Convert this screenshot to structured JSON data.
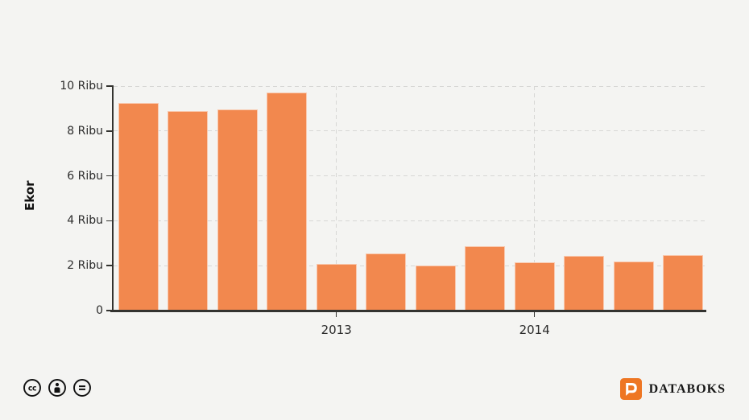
{
  "page": {
    "background_color": "#f4f4f2"
  },
  "chart_data": {
    "type": "bar",
    "title": "",
    "xlabel": "",
    "ylabel": "Ekor",
    "unit": "Ribu (thousands)",
    "bar_color": "#F2884E",
    "bar_border_color": "#F8BC95",
    "grid": "dashed horizontal lines at every 2 Ribu; dashed vertical lines at year ticks; grid on",
    "legend": "none",
    "ylim": [
      0,
      10
    ],
    "y_ticks": [
      {
        "value": 0,
        "label": "0"
      },
      {
        "value": 2,
        "label": "2 Ribu"
      },
      {
        "value": 4,
        "label": "4 Ribu"
      },
      {
        "value": 6,
        "label": "6 Ribu"
      },
      {
        "value": 8,
        "label": "8 Ribu"
      },
      {
        "value": 10,
        "label": "10 Ribu"
      }
    ],
    "x_ticks": [
      {
        "label": "2013",
        "bar_index": 4
      },
      {
        "label": "2014",
        "bar_index": 8
      }
    ],
    "values": [
      9.26,
      8.89,
      8.95,
      9.71,
      2.07,
      2.54,
      2.0,
      2.86,
      2.16,
      2.44,
      2.18,
      2.47
    ],
    "note": "12 bars (appear quarterly); year labels mark the first bar of each year; values in Ribu estimated from gridlines"
  },
  "footer": {
    "license_icons": [
      "cc-icon",
      "attribution-icon",
      "no-derivatives-icon"
    ],
    "brand": {
      "name": "DATABOKS",
      "logo_color": "#EE7623",
      "text_color": "#161616"
    }
  }
}
